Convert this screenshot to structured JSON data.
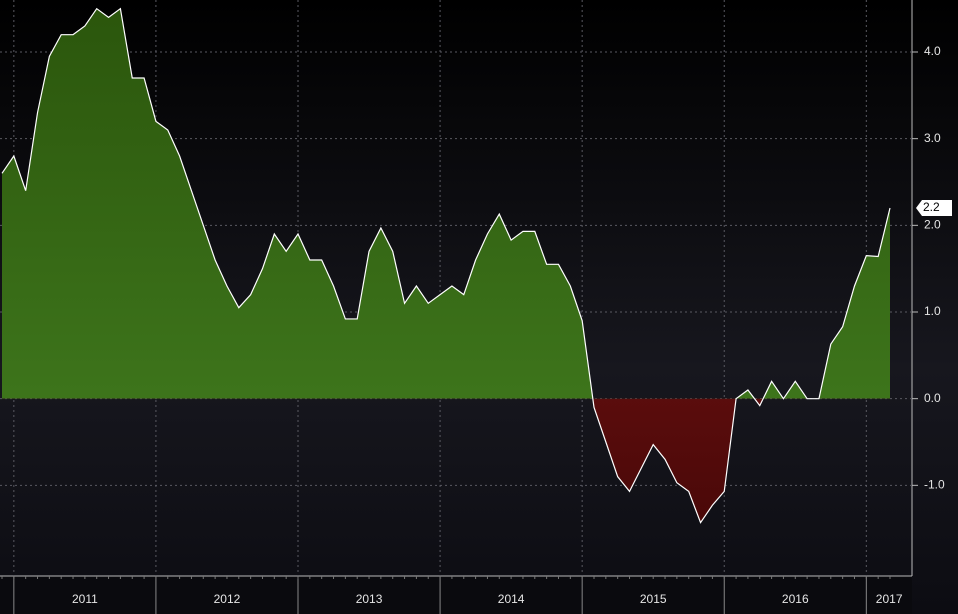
{
  "chart_data": {
    "type": "area",
    "categories": [
      null,
      "2011",
      null,
      null,
      null,
      null,
      null,
      null,
      null,
      null,
      null,
      null,
      null,
      "2012",
      null,
      null,
      null,
      null,
      null,
      null,
      null,
      null,
      null,
      null,
      null,
      "2013",
      null,
      null,
      null,
      null,
      null,
      null,
      null,
      null,
      null,
      null,
      null,
      "2014",
      null,
      null,
      null,
      null,
      null,
      null,
      null,
      null,
      null,
      null,
      null,
      "2015",
      null,
      null,
      null,
      null,
      null,
      null,
      null,
      null,
      null,
      null,
      null,
      "2016",
      null,
      null,
      null,
      null,
      null,
      null,
      null,
      null,
      null,
      null,
      null,
      "2017",
      null,
      null
    ],
    "values": [
      2.6,
      2.8,
      2.4,
      3.3,
      3.95,
      4.2,
      4.2,
      4.3,
      4.5,
      4.4,
      4.5,
      3.7,
      3.7,
      3.2,
      3.1,
      2.8,
      2.4,
      2.0,
      1.6,
      1.3,
      1.05,
      1.2,
      1.5,
      1.9,
      1.7,
      1.9,
      1.6,
      1.6,
      1.3,
      0.92,
      0.92,
      1.7,
      1.97,
      1.7,
      1.1,
      1.3,
      1.1,
      1.2,
      1.3,
      1.2,
      1.6,
      1.9,
      2.13,
      1.83,
      1.93,
      1.93,
      1.55,
      1.55,
      1.3,
      0.9,
      -0.1,
      -0.5,
      -0.9,
      -1.07,
      -0.8,
      -0.53,
      -0.7,
      -0.97,
      -1.07,
      -1.43,
      -1.23,
      -1.07,
      0.0,
      0.1,
      -0.08,
      0.2,
      0.0,
      0.2,
      0.0,
      0.0,
      0.63,
      0.83,
      1.3,
      1.65,
      1.64,
      2.2
    ],
    "positive_color": "#3f7a1c",
    "negative_color": "#7e1616",
    "line_color": "#ffffff",
    "ylim": [
      -2.0,
      4.6
    ],
    "yticks": [
      {
        "value": -1.0,
        "label": "-1.0"
      },
      {
        "value": 0.0,
        "label": "0.0"
      },
      {
        "value": 1.0,
        "label": "1.0"
      },
      {
        "value": 2.0,
        "label": "2.0"
      },
      {
        "value": 3.0,
        "label": "3.0"
      },
      {
        "value": 4.0,
        "label": "4.0"
      }
    ],
    "grid": true,
    "y_axis_side": "right"
  }
}
